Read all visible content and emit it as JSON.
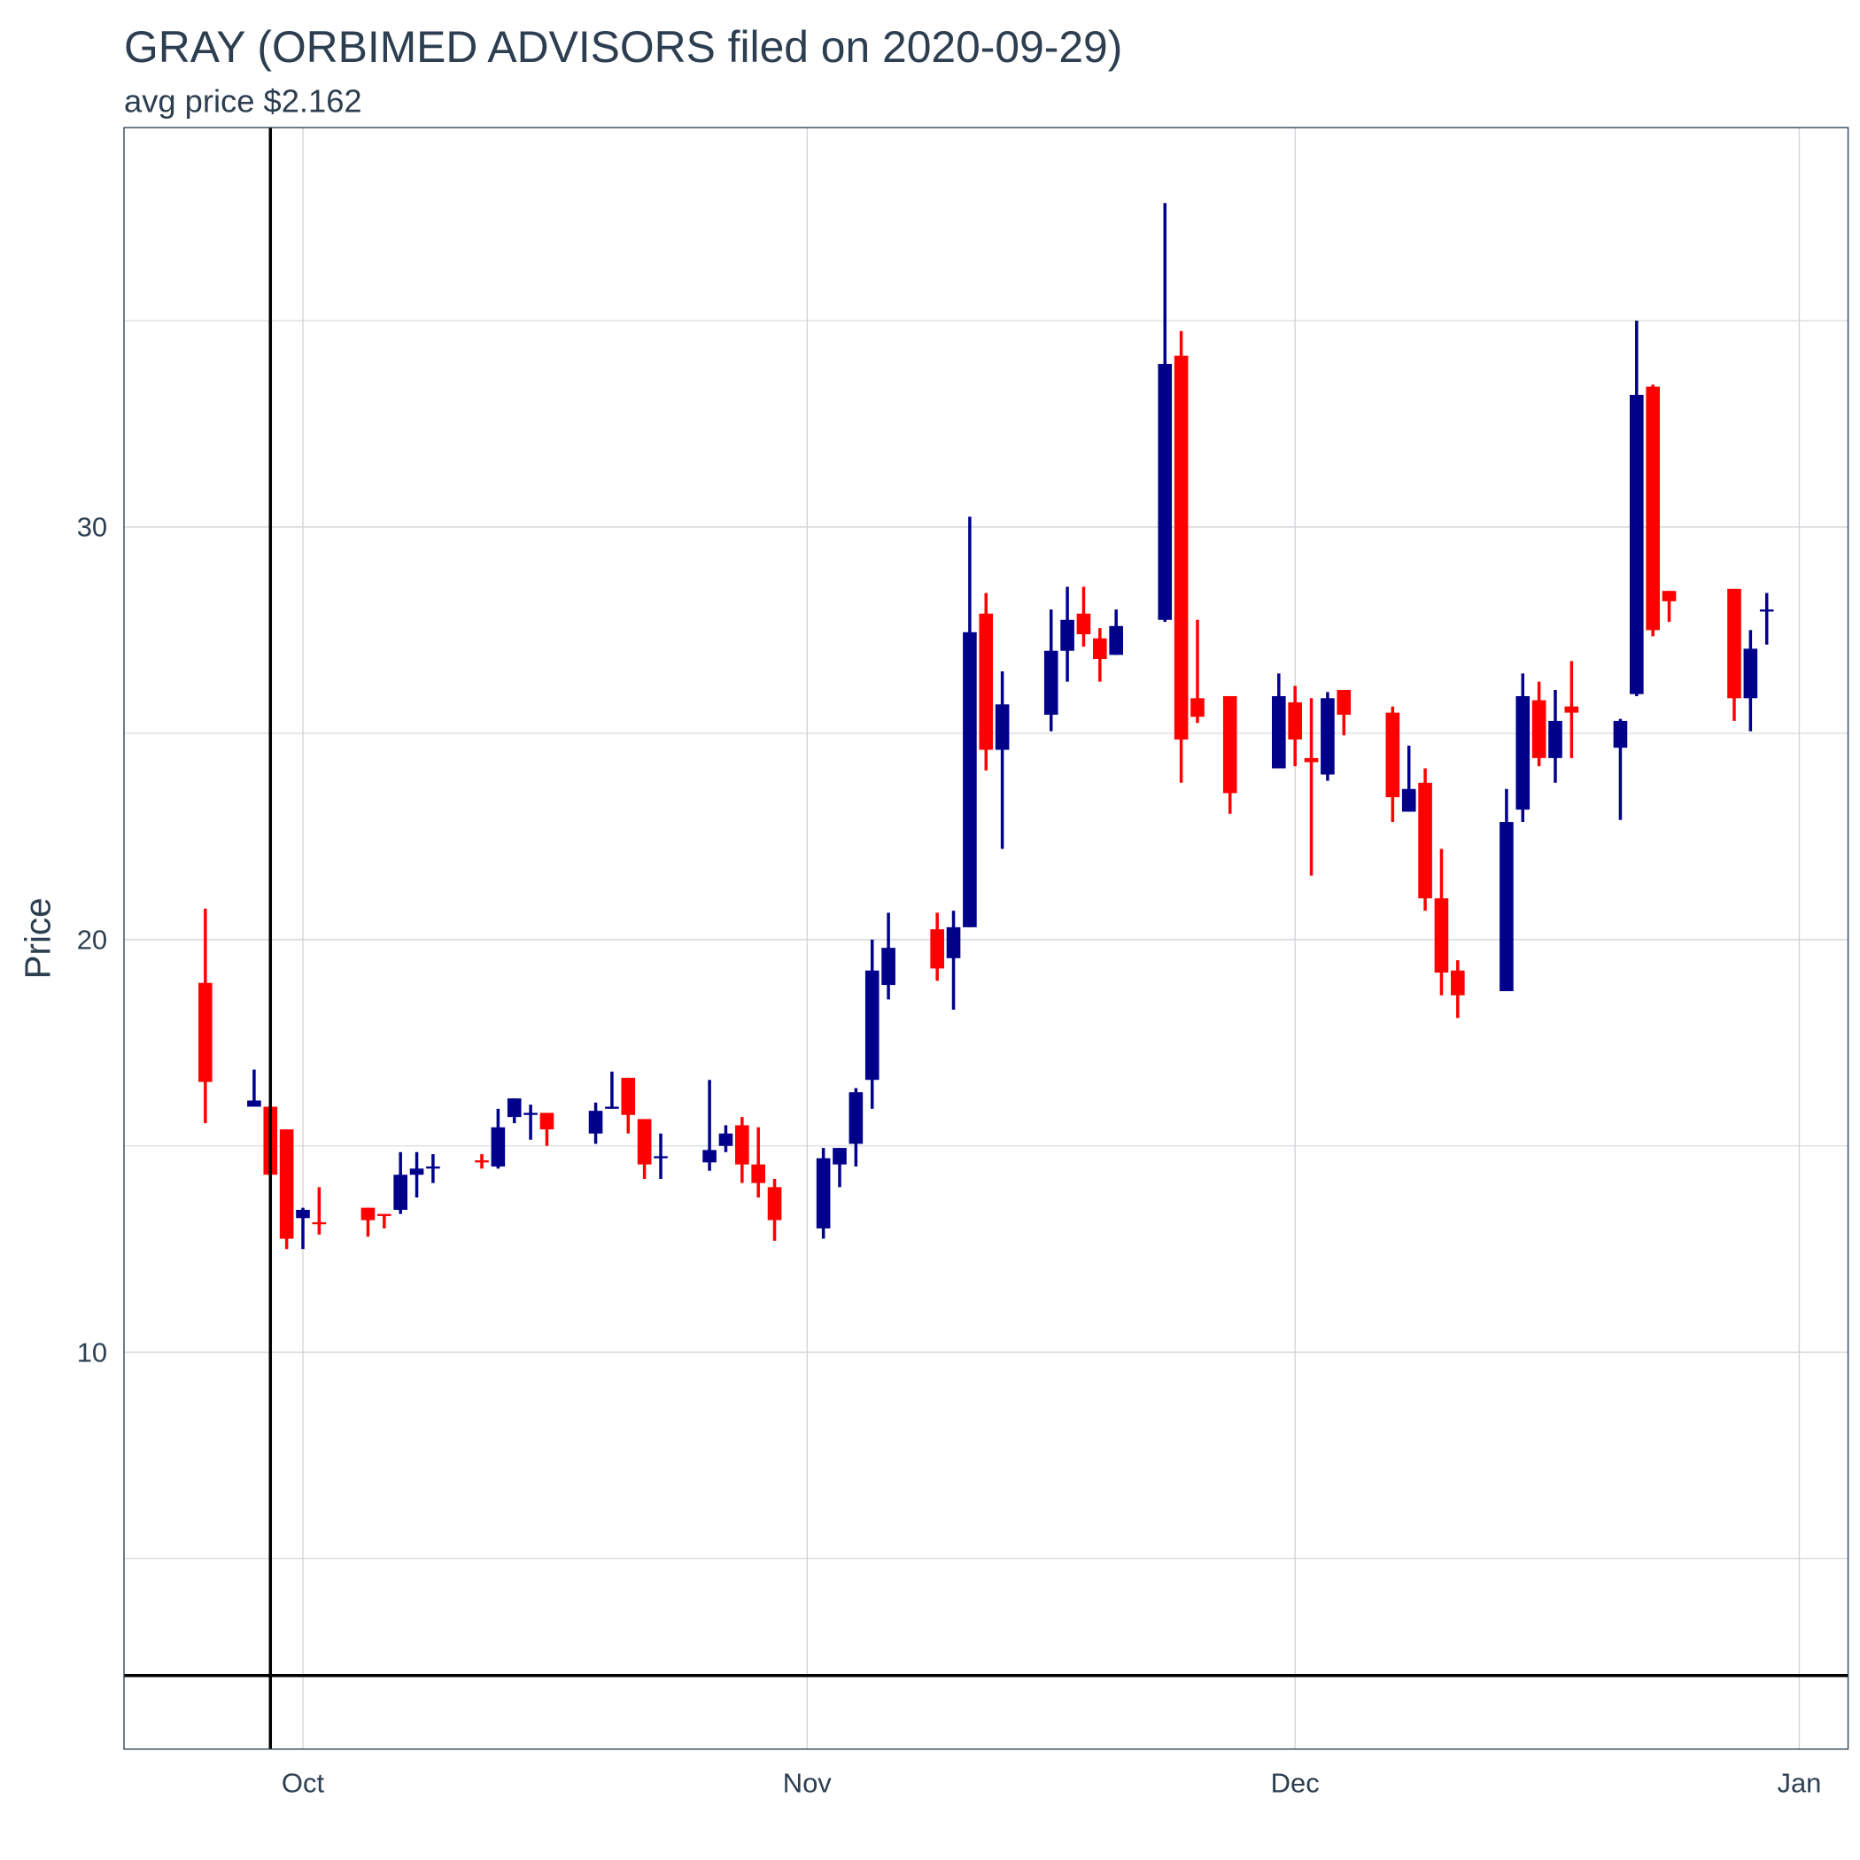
{
  "chart_data": {
    "type": "candlestick",
    "title": "GRAY (ORBIMED ADVISORS filed on 2020-09-29)",
    "subtitle": "avg price $2.162",
    "y_label": "Price",
    "dates": [
      "2020-09-25",
      "2020-09-28",
      "2020-09-29",
      "2020-09-30",
      "2020-10-01",
      "2020-10-02",
      "2020-10-05",
      "2020-10-06",
      "2020-10-07",
      "2020-10-08",
      "2020-10-09",
      "2020-10-12",
      "2020-10-13",
      "2020-10-14",
      "2020-10-15",
      "2020-10-16",
      "2020-10-19",
      "2020-10-20",
      "2020-10-21",
      "2020-10-22",
      "2020-10-23",
      "2020-10-26",
      "2020-10-27",
      "2020-10-28",
      "2020-10-29",
      "2020-10-30",
      "2020-11-02",
      "2020-11-03",
      "2020-11-04",
      "2020-11-05",
      "2020-11-06",
      "2020-11-09",
      "2020-11-10",
      "2020-11-11",
      "2020-11-12",
      "2020-11-13",
      "2020-11-16",
      "2020-11-17",
      "2020-11-18",
      "2020-11-19",
      "2020-11-20",
      "2020-11-23",
      "2020-11-24",
      "2020-11-25",
      "2020-11-27",
      "2020-11-30",
      "2020-12-01",
      "2020-12-02",
      "2020-12-03",
      "2020-12-04",
      "2020-12-07",
      "2020-12-08",
      "2020-12-09",
      "2020-12-10",
      "2020-12-11",
      "2020-12-14",
      "2020-12-15",
      "2020-12-16",
      "2020-12-17",
      "2020-12-18",
      "2020-12-21",
      "2020-12-22",
      "2020-12-23",
      "2020-12-24",
      "2020-12-28",
      "2020-12-29",
      "2020-12-30"
    ],
    "open": [
      18.95,
      15.95,
      15.95,
      15.4,
      13.25,
      13.15,
      13.5,
      13.35,
      13.45,
      14.3,
      14.45,
      14.65,
      14.5,
      15.7,
      15.75,
      15.8,
      15.3,
      15.9,
      16.65,
      15.65,
      14.7,
      14.6,
      15.0,
      15.5,
      14.55,
      14.0,
      13.0,
      14.55,
      15.05,
      16.6,
      18.9,
      20.25,
      19.55,
      20.3,
      27.9,
      24.6,
      25.45,
      27.0,
      27.9,
      27.3,
      26.9,
      27.75,
      34.15,
      25.85,
      25.9,
      24.15,
      25.75,
      24.4,
      24.0,
      26.05,
      25.5,
      23.1,
      23.8,
      21.0,
      19.25,
      18.75,
      23.15,
      25.8,
      24.4,
      25.65,
      24.65,
      25.95,
      33.4,
      28.45,
      28.5,
      25.85,
      27.95
    ],
    "high": [
      20.75,
      16.85,
      15.95,
      15.4,
      13.5,
      14.0,
      13.5,
      13.35,
      14.85,
      14.85,
      14.8,
      14.8,
      15.9,
      16.15,
      16.0,
      15.8,
      16.05,
      16.8,
      16.65,
      15.65,
      15.3,
      16.6,
      15.5,
      15.7,
      15.45,
      14.2,
      14.95,
      14.95,
      16.4,
      20.0,
      20.65,
      20.65,
      20.7,
      30.25,
      28.4,
      26.5,
      28.0,
      28.55,
      28.55,
      27.55,
      28.0,
      37.85,
      34.75,
      27.75,
      25.9,
      26.45,
      26.15,
      25.85,
      26.0,
      26.05,
      25.65,
      24.7,
      24.15,
      22.2,
      19.5,
      23.65,
      26.45,
      26.25,
      26.05,
      26.75,
      25.35,
      35.0,
      33.45,
      28.45,
      28.5,
      27.5,
      28.4
    ],
    "low": [
      15.55,
      15.95,
      14.3,
      12.5,
      12.5,
      12.85,
      12.8,
      13.0,
      13.35,
      13.75,
      14.1,
      14.45,
      14.45,
      15.55,
      15.15,
      15.0,
      15.05,
      15.9,
      15.3,
      14.2,
      14.2,
      14.4,
      14.85,
      14.1,
      13.75,
      12.7,
      12.75,
      14.0,
      14.5,
      15.9,
      18.55,
      19.0,
      18.3,
      20.3,
      24.1,
      22.2,
      25.05,
      26.25,
      27.1,
      26.25,
      26.9,
      27.7,
      23.8,
      25.25,
      23.05,
      24.15,
      24.2,
      21.55,
      23.85,
      24.95,
      22.85,
      23.1,
      20.7,
      18.65,
      18.1,
      18.75,
      22.85,
      24.2,
      23.8,
      24.4,
      22.9,
      25.9,
      27.35,
      27.7,
      25.3,
      25.05,
      27.15
    ],
    "close": [
      16.55,
      16.1,
      14.3,
      12.75,
      13.45,
      13.1,
      13.2,
      13.3,
      14.3,
      14.45,
      14.5,
      14.6,
      15.45,
      16.15,
      15.8,
      15.4,
      15.85,
      15.95,
      15.75,
      14.55,
      14.75,
      14.9,
      15.3,
      14.55,
      14.1,
      13.2,
      14.7,
      14.95,
      16.3,
      19.25,
      19.8,
      19.3,
      20.3,
      27.45,
      24.6,
      25.7,
      27.0,
      27.75,
      27.4,
      26.8,
      27.6,
      33.95,
      24.85,
      25.4,
      23.55,
      25.9,
      24.85,
      24.3,
      25.85,
      25.45,
      23.45,
      23.65,
      21.0,
      19.2,
      18.65,
      22.85,
      25.9,
      24.4,
      25.3,
      25.5,
      25.3,
      33.2,
      27.5,
      28.2,
      25.85,
      27.05,
      28.0
    ],
    "up_color": "#00008b",
    "down_color": "#ff0000",
    "xlim": [
      "2020-09-20",
      "2021-01-04"
    ],
    "xticks": [
      {
        "value": "2020-10-01",
        "label": "Oct"
      },
      {
        "value": "2020-11-01",
        "label": "Nov"
      },
      {
        "value": "2020-12-01",
        "label": "Dec"
      },
      {
        "value": "2021-01-01",
        "label": "Jan"
      }
    ],
    "ylim": [
      0.38,
      39.68
    ],
    "yticks": [
      10,
      20,
      30
    ],
    "y_minor_ticks": [
      5,
      15,
      25,
      35
    ],
    "grid": true,
    "hline": 2.162,
    "vline": "2020-09-29"
  }
}
